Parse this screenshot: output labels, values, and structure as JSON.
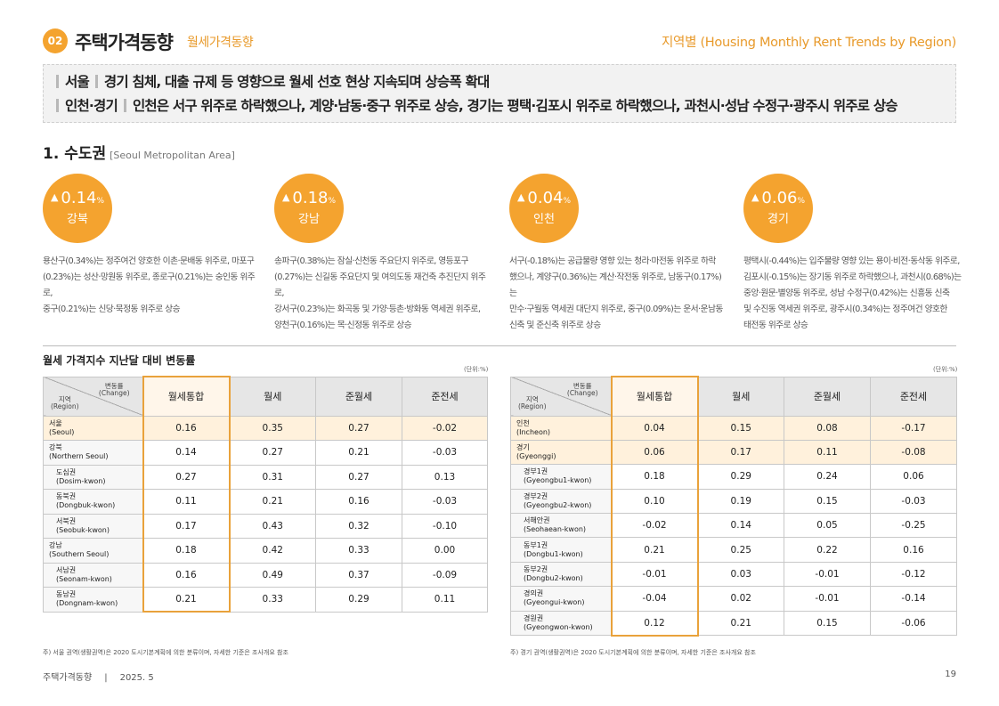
{
  "header": {
    "section_number": "02",
    "section_title": "주택가격동향",
    "subsection": "월세가격동향",
    "right_title": "지역별 (Housing Monthly Rent Trends by Region)"
  },
  "summary": {
    "line1": {
      "label": "서울",
      "text": "경기 침체, 대출 규제 등 영향으로 월세 선호 현상 지속되며 상승폭 확대"
    },
    "line2": {
      "label": "인천·경기",
      "text": "인천은 서구 위주로 하락했으나, 계양·남동·중구 위주로 상승, 경기는 평택·김포시 위주로 하락했으나, 과천시·성남 수정구·광주시 위주로 상승"
    }
  },
  "area": {
    "title": "1. 수도권",
    "subtitle": "[Seoul Metropolitan Area]"
  },
  "regions": [
    {
      "value": "0.14",
      "unit": "%",
      "name": "강북",
      "desc_lines": [
        "용산구(0.34%)는 정주여건 양호한 이촌·문배동 위주로, 마포구",
        "(0.23%)는 성산·망원동 위주로, 종로구(0.21%)는 숭인동 위주로,",
        "중구(0.21%)는 신당·묵정동 위주로 상승"
      ]
    },
    {
      "value": "0.18",
      "unit": "%",
      "name": "강남",
      "desc_lines": [
        "송파구(0.38%)는 잠실·신천동 주요단지 위주로, 영등포구",
        "(0.27%)는 신길동 주요단지 및 여의도동 재건축 추진단지 위주로,",
        "강서구(0.23%)는 화곡동 및 가양·등촌·방화동 역세권 위주로,",
        "양천구(0.16%)는 목·신정동 위주로 상승"
      ]
    },
    {
      "value": "0.04",
      "unit": "%",
      "name": "인천",
      "desc_lines": [
        "서구(-0.18%)는 공급물량 영향 있는 청라·마전동 위주로 하락",
        "했으나, 계양구(0.36%)는 계산·작전동 위주로, 남동구(0.17%)는",
        "만수·구월동 역세권 대단지 위주로, 중구(0.09%)는 운서·운남동",
        "신축 및 준신축 위주로 상승"
      ]
    },
    {
      "value": "0.06",
      "unit": "%",
      "name": "경기",
      "desc_lines": [
        "평택시(-0.44%)는 입주물량 영향 있는 용이·비전·동삭동 위주로,",
        "김포시(-0.15%)는 장기동 위주로 하락했으나, 과천시(0.68%)는",
        "중앙·원문·별양동 위주로, 성남 수정구(0.42%)는 신흥동 신축",
        "및 수진동 역세권 위주로, 광주시(0.34%)는 정주여건 양호한",
        "태전동 위주로 상승"
      ]
    }
  ],
  "table_title": "월세 가격지수 지난달 대비 변동률",
  "unit_label": "(단위:%)",
  "table_header": {
    "change_kr": "변동률",
    "change_en": "(Change)",
    "region_kr": "지역",
    "region_en": "(Region)",
    "columns": [
      "월세통합",
      "월세",
      "준월세",
      "준전세"
    ]
  },
  "table_left": [
    {
      "kr": "서울",
      "en": "(Seoul)",
      "values": [
        "0.16",
        "0.35",
        "0.27",
        "-0.02"
      ]
    },
    {
      "kr": "강북",
      "en": "(Northern Seoul)",
      "values": [
        "0.14",
        "0.27",
        "0.21",
        "-0.03"
      ]
    },
    {
      "kr": "도심권",
      "en": "(Dosim-kwon)",
      "values": [
        "0.27",
        "0.31",
        "0.27",
        "0.13"
      ]
    },
    {
      "kr": "동북권",
      "en": "(Dongbuk-kwon)",
      "values": [
        "0.11",
        "0.21",
        "0.16",
        "-0.03"
      ]
    },
    {
      "kr": "서북권",
      "en": "(Seobuk-kwon)",
      "values": [
        "0.17",
        "0.43",
        "0.32",
        "-0.10"
      ]
    },
    {
      "kr": "강남",
      "en": "(Southern Seoul)",
      "values": [
        "0.18",
        "0.42",
        "0.33",
        "0.00"
      ]
    },
    {
      "kr": "서남권",
      "en": "(Seonam-kwon)",
      "values": [
        "0.16",
        "0.49",
        "0.37",
        "-0.09"
      ]
    },
    {
      "kr": "동남권",
      "en": "(Dongnam-kwon)",
      "values": [
        "0.21",
        "0.33",
        "0.29",
        "0.11"
      ]
    }
  ],
  "table_right": [
    {
      "kr": "인천",
      "en": "(Incheon)",
      "values": [
        "0.04",
        "0.15",
        "0.08",
        "-0.17"
      ]
    },
    {
      "kr": "경기",
      "en": "(Gyeonggi)",
      "values": [
        "0.06",
        "0.17",
        "0.11",
        "-0.08"
      ]
    },
    {
      "kr": "경부1권",
      "en": "(Gyeongbu1-kwon)",
      "values": [
        "0.18",
        "0.29",
        "0.24",
        "0.06"
      ]
    },
    {
      "kr": "경부2권",
      "en": "(Gyeongbu2-kwon)",
      "values": [
        "0.10",
        "0.19",
        "0.15",
        "-0.03"
      ]
    },
    {
      "kr": "서해안권",
      "en": "(Seohaean-kwon)",
      "values": [
        "-0.02",
        "0.14",
        "0.05",
        "-0.25"
      ]
    },
    {
      "kr": "동부1권",
      "en": "(Dongbu1-kwon)",
      "values": [
        "0.21",
        "0.25",
        "0.22",
        "0.16"
      ]
    },
    {
      "kr": "동부2권",
      "en": "(Dongbu2-kwon)",
      "values": [
        "-0.01",
        "0.03",
        "-0.01",
        "-0.12"
      ]
    },
    {
      "kr": "경의권",
      "en": "(Gyeongui-kwon)",
      "values": [
        "-0.04",
        "0.02",
        "-0.01",
        "-0.14"
      ]
    },
    {
      "kr": "경원권",
      "en": "(Gyeongwon-kwon)",
      "values": [
        "0.12",
        "0.21",
        "0.15",
        "-0.06"
      ]
    }
  ],
  "notes": {
    "left": "주) 서울 권역(생활권역)은 2020 도시기본계획에 의한 분류이며, 자세한 기준은 조사개요 참조",
    "right": "주) 경기 권역(생활권역)은 2020 도시기본계획에 의한 분류이며, 자세한 기준은 조사개요 참조"
  },
  "footer": {
    "publication": "주택가격동향",
    "separator": "|",
    "date": "2025. 5",
    "page": "19"
  },
  "colors": {
    "accent": "#f4a32f",
    "accent_text": "#e89a2b",
    "highlight_row": "#fff1dc"
  }
}
